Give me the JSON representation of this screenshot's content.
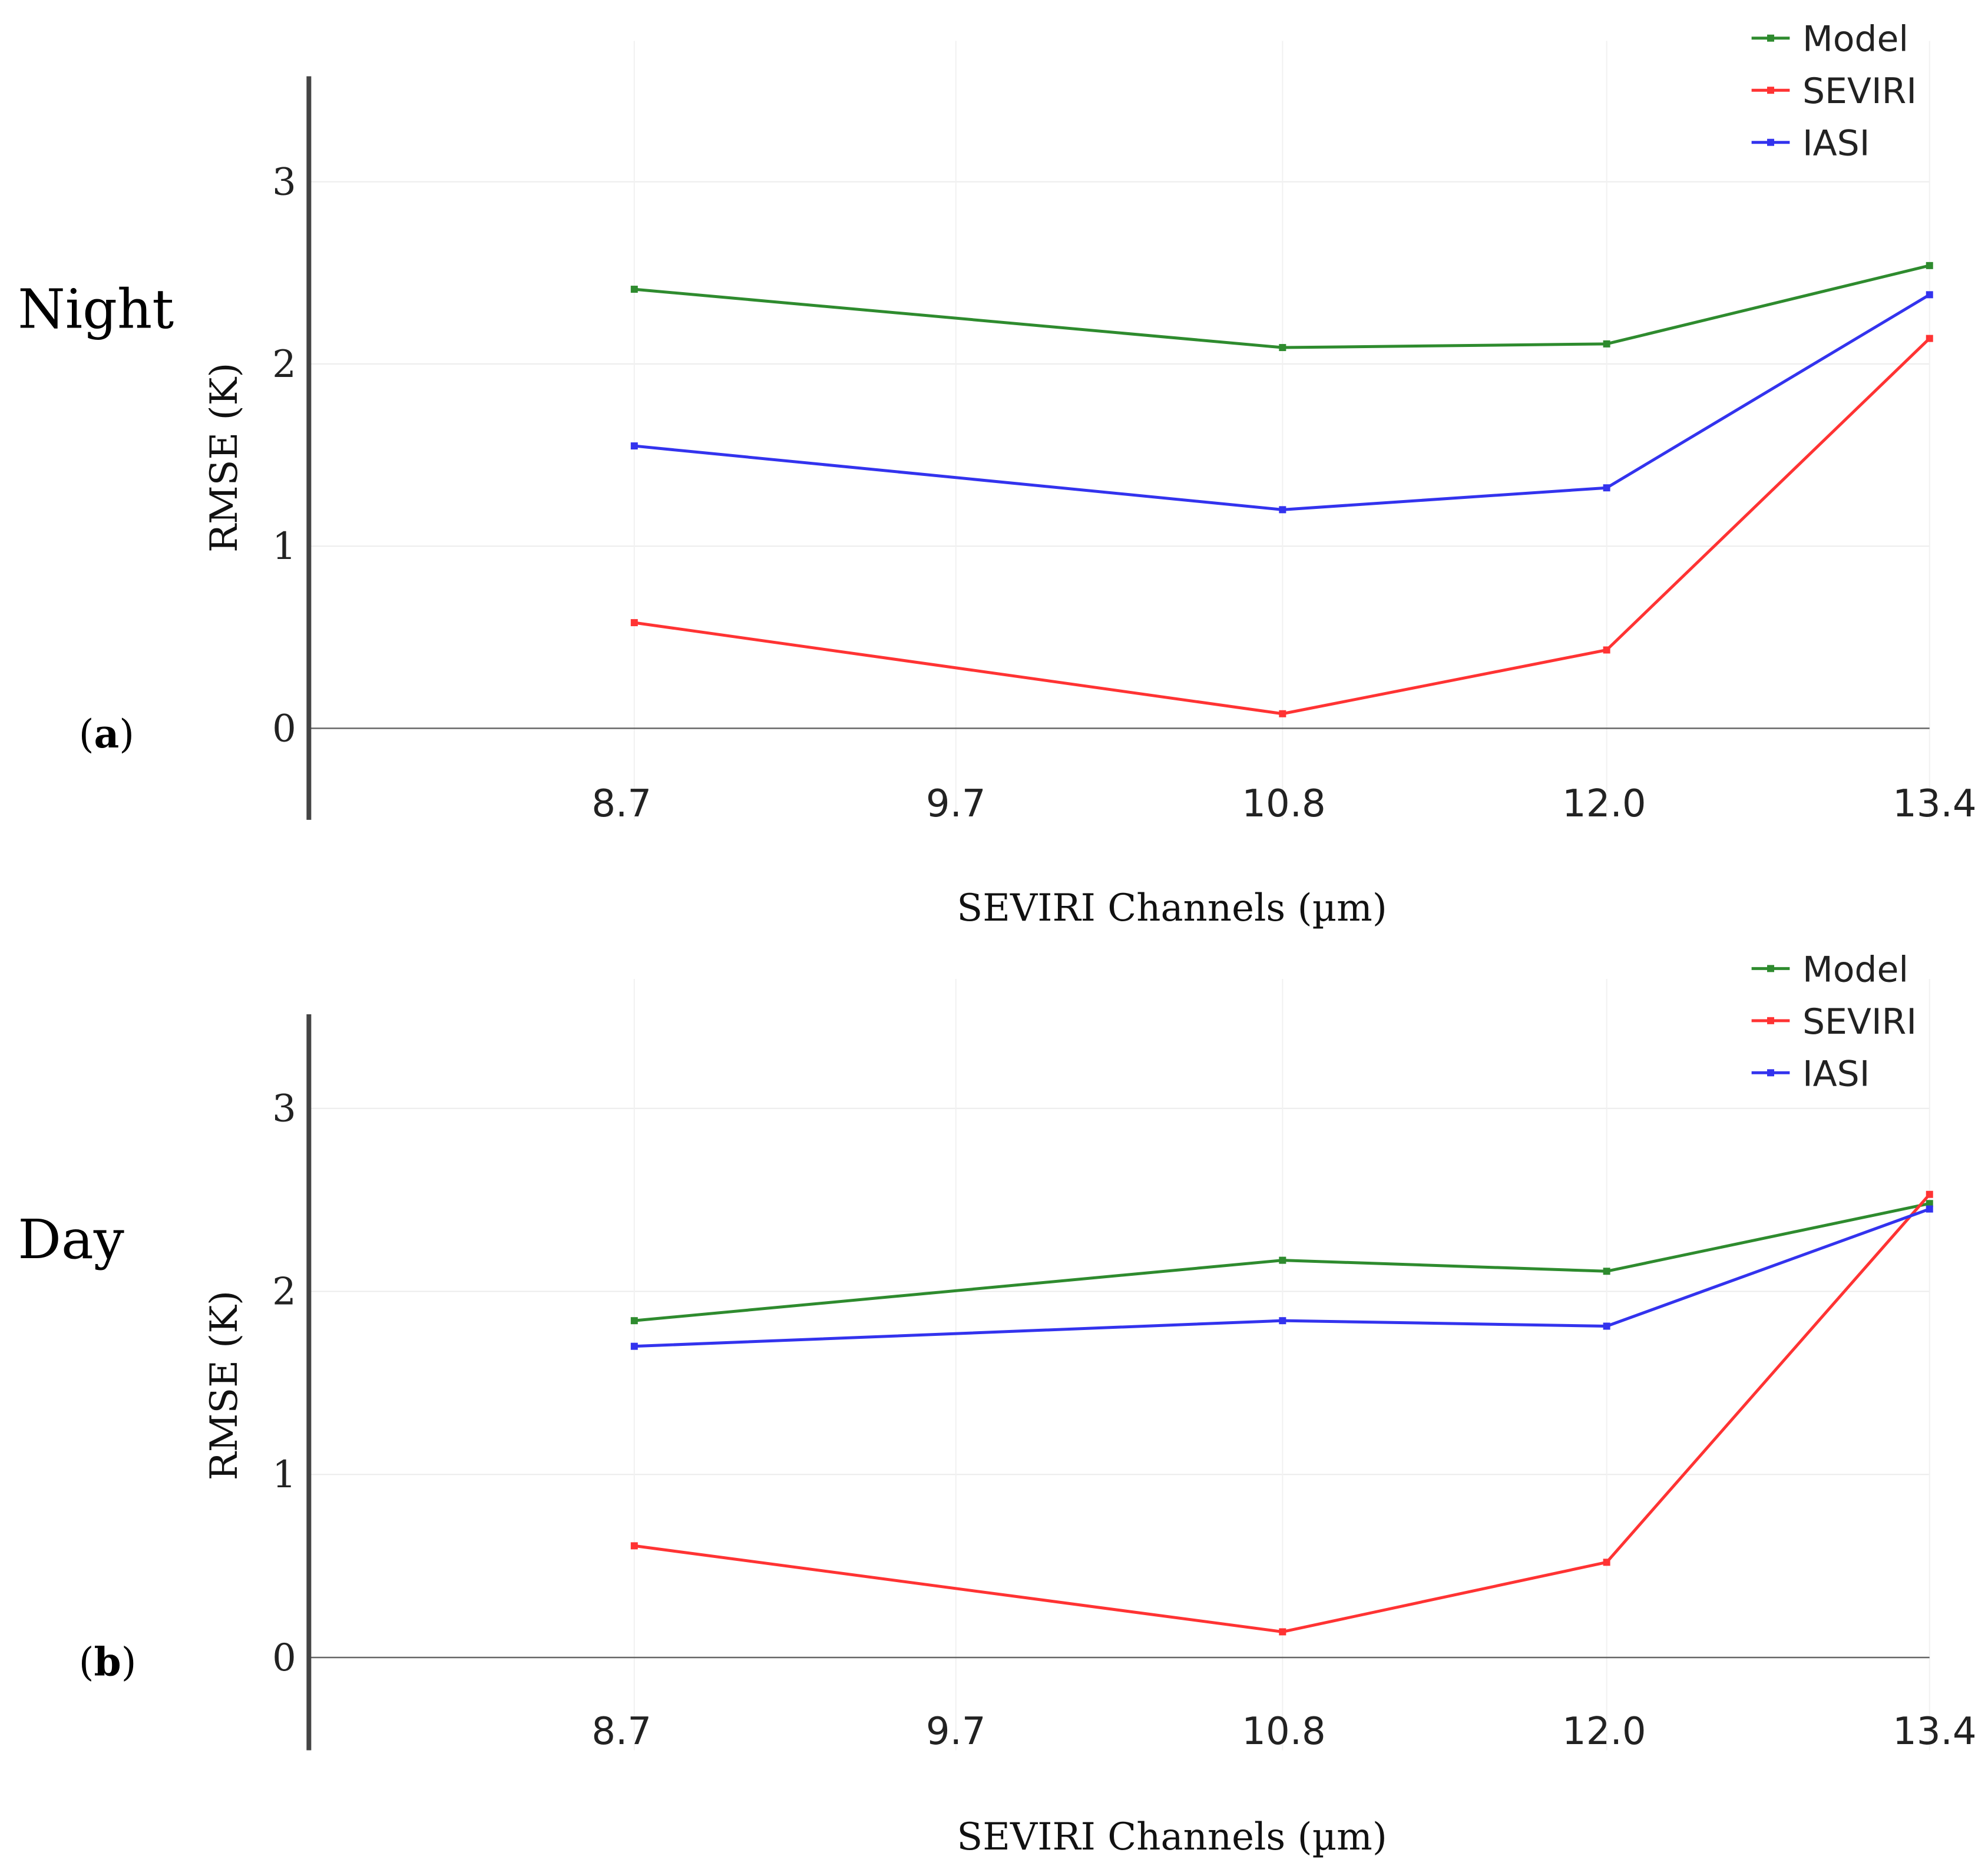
{
  "chart_data": [
    {
      "type": "line",
      "row_label": "Night",
      "panel_label": "(a)",
      "panel_letter": "a",
      "xlabel": "SEVIRI Channels (µm)",
      "ylabel": "RMSE (K)",
      "x": [
        "8.7",
        "10.8",
        "12.0",
        "13.4"
      ],
      "x_ticks": [
        "8.7",
        "9.7",
        "10.8",
        "12.0",
        "13.4"
      ],
      "y_ticks": [
        "0",
        "1",
        "2",
        "3"
      ],
      "ylim": [
        -0.5,
        3.6
      ],
      "grid": true,
      "legend_position": "top-right",
      "series": [
        {
          "name": "Model",
          "color": "#2e8b2e",
          "values": [
            2.41,
            2.09,
            2.11,
            2.54
          ]
        },
        {
          "name": "SEVIRI",
          "color": "#ff3333",
          "values": [
            0.58,
            0.08,
            0.43,
            2.14
          ]
        },
        {
          "name": "IASI",
          "color": "#3333ee",
          "values": [
            1.55,
            1.2,
            1.32,
            2.38
          ]
        }
      ]
    },
    {
      "type": "line",
      "row_label": "Day",
      "panel_label": "(b)",
      "panel_letter": "b",
      "xlabel": "SEVIRI Channels (µm)",
      "ylabel": "RMSE (K)",
      "x": [
        "8.7",
        "10.8",
        "12.0",
        "13.4"
      ],
      "x_ticks": [
        "8.7",
        "9.7",
        "10.8",
        "12.0",
        "13.4"
      ],
      "y_ticks": [
        "0",
        "1",
        "2",
        "3"
      ],
      "ylim": [
        -0.5,
        3.6
      ],
      "grid": true,
      "legend_position": "top-right",
      "series": [
        {
          "name": "Model",
          "color": "#2e8b2e",
          "values": [
            1.84,
            2.17,
            2.11,
            2.48
          ]
        },
        {
          "name": "SEVIRI",
          "color": "#ff3333",
          "values": [
            0.61,
            0.14,
            0.52,
            2.53
          ]
        },
        {
          "name": "IASI",
          "color": "#3333ee",
          "values": [
            1.7,
            1.84,
            1.81,
            2.45
          ]
        }
      ]
    }
  ]
}
